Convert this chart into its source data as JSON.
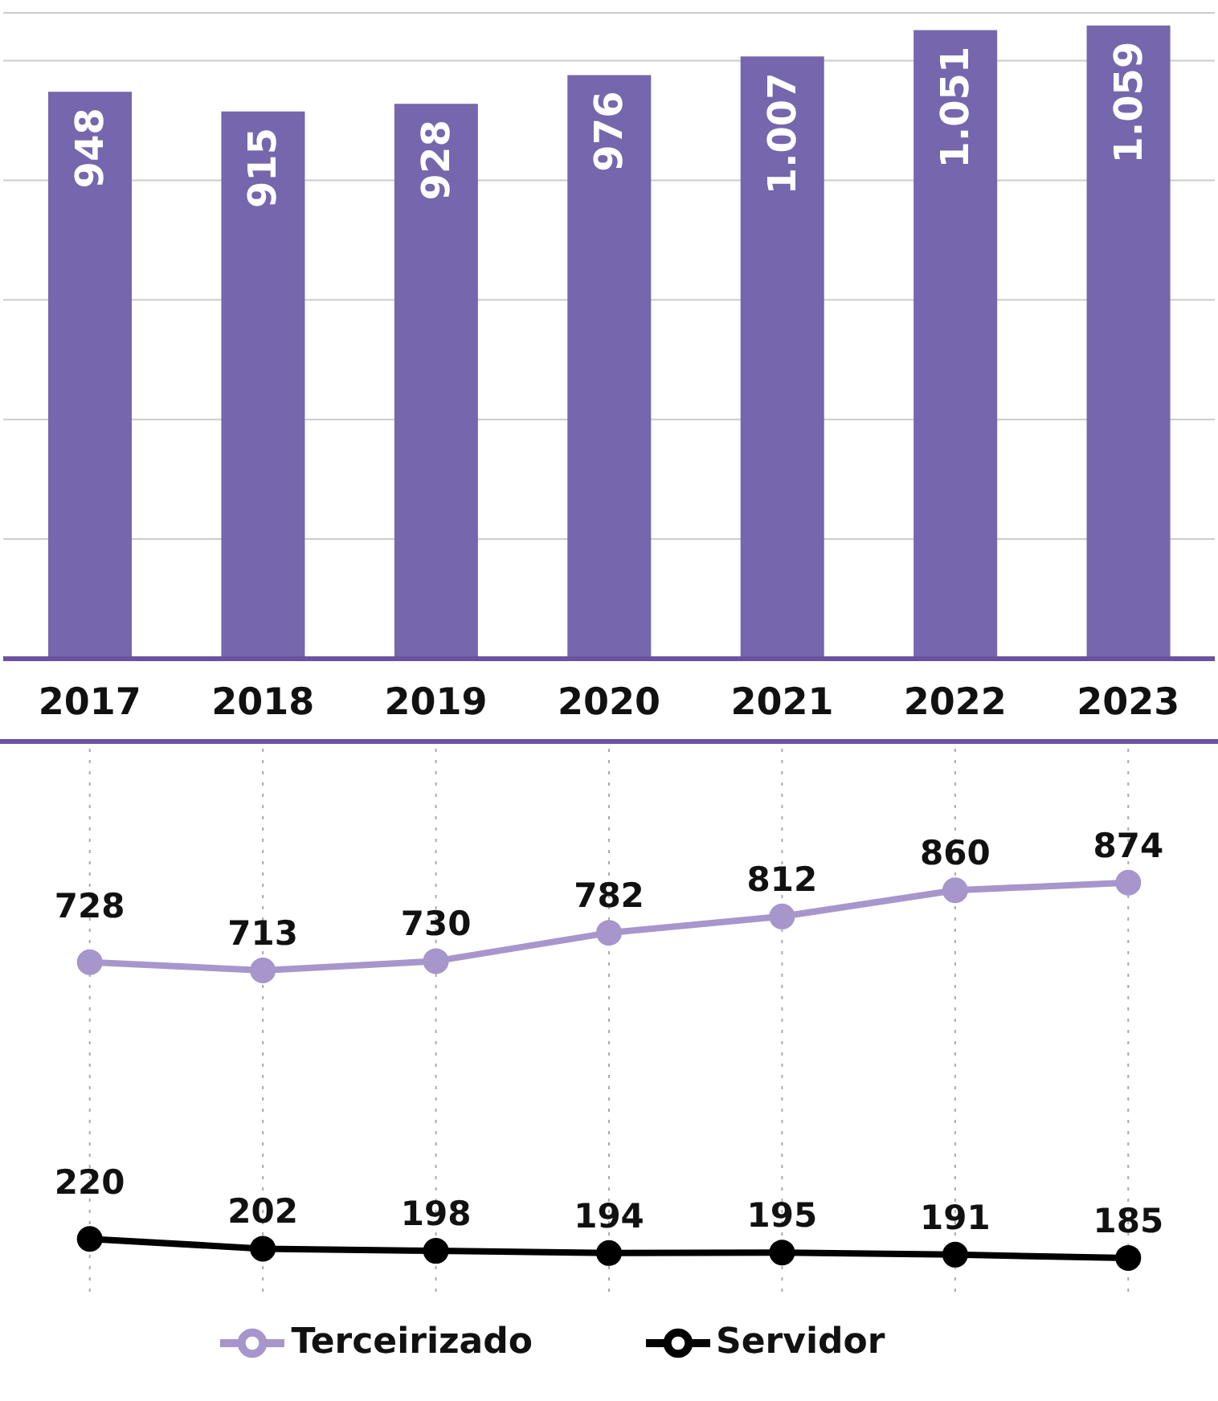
{
  "chart_data": [
    {
      "type": "bar",
      "categories": [
        "2017",
        "2018",
        "2019",
        "2020",
        "2021",
        "2022",
        "2023"
      ],
      "values": [
        948,
        915,
        928,
        976,
        1007,
        1051,
        1059
      ],
      "value_labels": [
        "948",
        "915",
        "928",
        "976",
        "1.007",
        "1.051",
        "1.059"
      ],
      "color": "#7666ad",
      "ylim": [
        0,
        1080
      ],
      "yticks": [
        {
          "value": 0,
          "label": null
        },
        {
          "value": 200,
          "label": null
        },
        {
          "value": 400,
          "label": null
        },
        {
          "value": 600,
          "label": null
        },
        {
          "value": 800,
          "label": null
        },
        {
          "value": 1000,
          "label": null
        }
      ],
      "grid": "y",
      "tick_labels": "x"
    },
    {
      "type": "line",
      "categories": [
        "2017",
        "2018",
        "2019",
        "2020",
        "2021",
        "2022",
        "2023"
      ],
      "ylim": [
        120,
        1120
      ],
      "tick_labels": false,
      "grid": "x",
      "data_labels": true,
      "marker": "circle",
      "legend": "bottom",
      "series": [
        {
          "name": "Terceirizado",
          "color": "#a696cc",
          "values": [
            728,
            713,
            730,
            782,
            812,
            860,
            874
          ]
        },
        {
          "name": "Servidor",
          "color": "#000000",
          "values": [
            220,
            202,
            198,
            194,
            195,
            191,
            185
          ]
        }
      ]
    }
  ]
}
